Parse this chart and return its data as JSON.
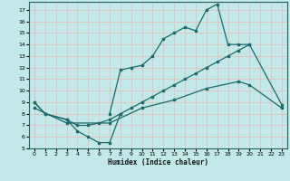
{
  "xlabel": "Humidex (Indice chaleur)",
  "xlim": [
    -0.5,
    23.5
  ],
  "ylim": [
    5,
    17.7
  ],
  "yticks": [
    5,
    6,
    7,
    8,
    9,
    10,
    11,
    12,
    13,
    14,
    15,
    16,
    17
  ],
  "xticks": [
    0,
    1,
    2,
    3,
    4,
    5,
    6,
    7,
    8,
    9,
    10,
    11,
    12,
    13,
    14,
    15,
    16,
    17,
    18,
    19,
    20,
    21,
    22,
    23
  ],
  "bg_color": "#c2e8e8",
  "grid_color": "#e8b8b8",
  "line_color": "#1a6b6b",
  "line1": {
    "x": [
      0,
      1,
      3,
      4,
      5,
      6,
      7,
      8
    ],
    "y": [
      9,
      8,
      7.5,
      6.5,
      6.0,
      5.5,
      5.5,
      8.0
    ]
  },
  "line2": {
    "x": [
      7,
      8,
      9,
      10,
      11,
      12,
      13,
      14,
      15,
      16,
      17,
      18,
      19,
      20
    ],
    "y": [
      8.0,
      11.8,
      12.0,
      12.2,
      13.0,
      14.5,
      15.0,
      15.5,
      15.2,
      17.0,
      17.5,
      14.0,
      14.0,
      14.0
    ]
  },
  "line3": {
    "x": [
      0,
      1,
      3,
      4,
      5,
      6,
      7,
      8,
      9,
      10,
      11,
      12,
      13,
      14,
      15,
      16,
      17,
      18,
      19,
      20,
      23
    ],
    "y": [
      9.0,
      8.0,
      7.5,
      7.0,
      7.0,
      7.2,
      7.5,
      8.0,
      8.5,
      9.0,
      9.5,
      10.0,
      10.5,
      11.0,
      11.5,
      12.0,
      12.5,
      13.0,
      13.5,
      14.0,
      8.8
    ]
  },
  "line4": {
    "x": [
      0,
      3,
      7,
      10,
      13,
      16,
      19,
      20,
      23
    ],
    "y": [
      8.5,
      7.2,
      7.2,
      8.5,
      9.2,
      10.2,
      10.8,
      10.5,
      8.5
    ]
  }
}
